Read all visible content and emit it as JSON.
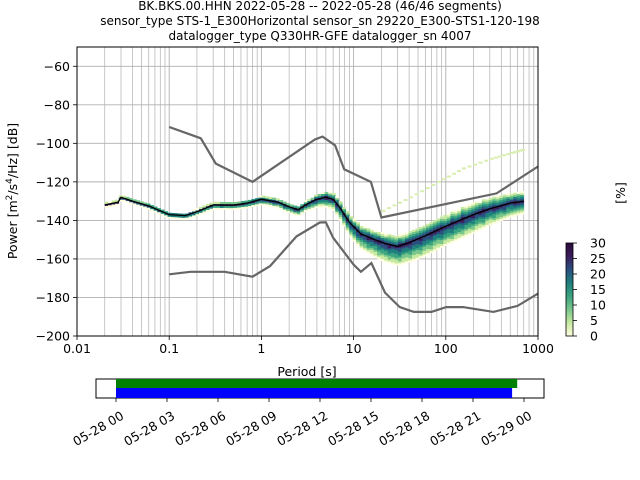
{
  "chart_data": {
    "type": "heatmap",
    "title_lines": [
      "BK.BKS.00.HHN   2022-05-28 -- 2022-05-28  (46/46 segments)",
      "sensor_type STS-1_E300Horizontal sensor_sn 29220_E300-STS1-120-198",
      "datalogger_type Q330HR-GFE datalogger_sn 4007"
    ],
    "xlabel": "Period [s]",
    "ylabel_parts": [
      "Power [m",
      "2",
      "/s",
      "4",
      "/Hz] [dB]"
    ],
    "x_scale": "log",
    "xlim": [
      0.01,
      1000
    ],
    "ylim": [
      -200,
      -50
    ],
    "x_ticks": [
      {
        "value": 0.01,
        "label": "0.01"
      },
      {
        "value": 0.1,
        "label": "0.1"
      },
      {
        "value": 1,
        "label": "1"
      },
      {
        "value": 10,
        "label": "10"
      },
      {
        "value": 100,
        "label": "100"
      },
      {
        "value": 1000,
        "label": "1000"
      }
    ],
    "y_ticks": [
      {
        "value": -60,
        "label": "−60"
      },
      {
        "value": -80,
        "label": "−80"
      },
      {
        "value": -100,
        "label": "−100"
      },
      {
        "value": -120,
        "label": "−120"
      },
      {
        "value": -140,
        "label": "−140"
      },
      {
        "value": -160,
        "label": "−160"
      },
      {
        "value": -180,
        "label": "−180"
      },
      {
        "value": -200,
        "label": "−200"
      }
    ],
    "grid": true,
    "colorbar": {
      "label": "[%]",
      "range": [
        0,
        30
      ],
      "ticks": [
        {
          "value": 0,
          "label": "0"
        },
        {
          "value": 5,
          "label": "5"
        },
        {
          "value": 10,
          "label": "10"
        },
        {
          "value": 15,
          "label": "15"
        },
        {
          "value": 20,
          "label": "20"
        },
        {
          "value": 25,
          "label": "25"
        },
        {
          "value": 30,
          "label": "30"
        }
      ],
      "colors": [
        "#ffffe0",
        "#c7e9a0",
        "#79c68c",
        "#3aa37f",
        "#1f7f7d",
        "#2b4f7f",
        "#3b1d5c",
        "#2a0a3a"
      ]
    },
    "noise_models": {
      "color": "#666666",
      "high": [
        [
          0.1,
          -91.5
        ],
        [
          0.22,
          -97.4
        ],
        [
          0.32,
          -110.5
        ],
        [
          0.8,
          -120
        ],
        [
          3.8,
          -98
        ],
        [
          4.6,
          -96.5
        ],
        [
          6.3,
          -101
        ],
        [
          7.9,
          -113.5
        ],
        [
          15.4,
          -120
        ],
        [
          20,
          -138.5
        ],
        [
          354.8,
          -126
        ],
        [
          1000,
          -112
        ]
      ],
      "low": [
        [
          0.1,
          -168
        ],
        [
          0.17,
          -166.7
        ],
        [
          0.4,
          -166.7
        ],
        [
          0.8,
          -169.2
        ],
        [
          1.24,
          -163.7
        ],
        [
          2.4,
          -148.3
        ],
        [
          4.3,
          -141.1
        ],
        [
          5,
          -141
        ],
        [
          6,
          -149
        ],
        [
          10,
          -163
        ],
        [
          12,
          -166.7
        ],
        [
          15.6,
          -162.1
        ],
        [
          21.9,
          -177.5
        ],
        [
          31.6,
          -185
        ],
        [
          45,
          -187.5
        ],
        [
          70,
          -187.5
        ],
        [
          101,
          -185
        ],
        [
          154,
          -185
        ],
        [
          328,
          -187.5
        ],
        [
          600,
          -184.4
        ],
        [
          1000,
          -178
        ]
      ]
    },
    "mean_curve": [
      [
        0.02,
        -132
      ],
      [
        0.028,
        -130.5
      ],
      [
        0.03,
        -128
      ],
      [
        0.04,
        -130
      ],
      [
        0.06,
        -132.5
      ],
      [
        0.08,
        -135
      ],
      [
        0.1,
        -137
      ],
      [
        0.15,
        -137.5
      ],
      [
        0.2,
        -135.5
      ],
      [
        0.3,
        -132
      ],
      [
        0.5,
        -132
      ],
      [
        0.7,
        -131
      ],
      [
        1,
        -129
      ],
      [
        1.5,
        -130.5
      ],
      [
        2,
        -133
      ],
      [
        2.5,
        -134.5
      ],
      [
        3,
        -132
      ],
      [
        4,
        -129
      ],
      [
        5,
        -128
      ],
      [
        6,
        -129
      ],
      [
        7,
        -133
      ],
      [
        9,
        -141
      ],
      [
        12,
        -147
      ],
      [
        17,
        -150
      ],
      [
        22,
        -152
      ],
      [
        30,
        -153.5
      ],
      [
        40,
        -151.5
      ],
      [
        60,
        -148
      ],
      [
        100,
        -143
      ],
      [
        150,
        -139.5
      ],
      [
        200,
        -137
      ],
      [
        300,
        -134
      ],
      [
        500,
        -131
      ],
      [
        700,
        -130
      ]
    ],
    "density_band": {
      "spread_upper": [
        [
          0.02,
          1
        ],
        [
          0.5,
          1.5
        ],
        [
          3,
          2
        ],
        [
          8,
          4
        ],
        [
          20,
          5
        ],
        [
          50,
          6
        ],
        [
          200,
          6
        ],
        [
          700,
          5
        ]
      ],
      "spread_lower": [
        [
          0.02,
          1
        ],
        [
          0.5,
          2
        ],
        [
          3,
          3
        ],
        [
          8,
          6
        ],
        [
          20,
          9
        ],
        [
          50,
          10
        ],
        [
          200,
          9
        ],
        [
          700,
          6
        ]
      ]
    },
    "faint_trace": [
      [
        20,
        -135
      ],
      [
        40,
        -128
      ],
      [
        80,
        -120
      ],
      [
        150,
        -113
      ],
      [
        300,
        -108
      ],
      [
        500,
        -105
      ],
      [
        700,
        -103
      ]
    ],
    "time_axis": {
      "range_hours": [
        0,
        24
      ],
      "ticks": [
        {
          "hour": 0,
          "label": "05-28 00"
        },
        {
          "hour": 3,
          "label": "05-28 03"
        },
        {
          "hour": 6,
          "label": "05-28 06"
        },
        {
          "hour": 9,
          "label": "05-28 09"
        },
        {
          "hour": 12,
          "label": "05-28 12"
        },
        {
          "hour": 15,
          "label": "05-28 15"
        },
        {
          "hour": 18,
          "label": "05-28 18"
        },
        {
          "hour": 21,
          "label": "05-28 21"
        },
        {
          "hour": 24,
          "label": "05-29 00"
        }
      ],
      "coverage_bars": [
        {
          "color": "#008000",
          "start": 0,
          "end": 23.6
        },
        {
          "color": "#0000ff",
          "start": 0,
          "end": 23.3
        }
      ]
    }
  }
}
